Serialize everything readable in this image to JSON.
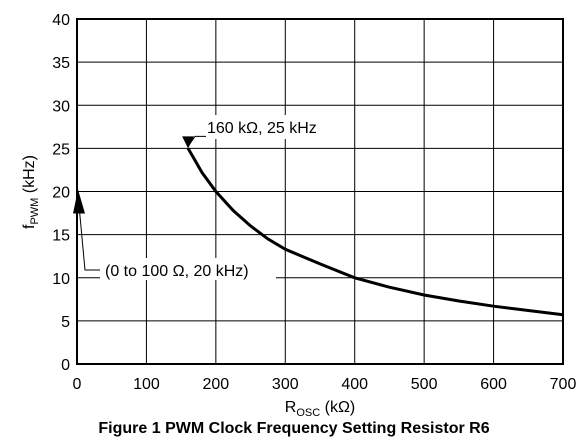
{
  "chart_data": {
    "type": "line",
    "xlabel_main": "R",
    "xlabel_sub": "OSC",
    "xlabel_unit": " (kΩ)",
    "ylabel_main": "f",
    "ylabel_sub": "PWM",
    "ylabel_unit": " (kHz)",
    "xlim": [
      0,
      700
    ],
    "ylim": [
      0,
      40
    ],
    "x_ticks": [
      0,
      100,
      200,
      300,
      400,
      500,
      600,
      700
    ],
    "y_ticks": [
      0,
      5,
      10,
      15,
      20,
      25,
      30,
      35,
      40
    ],
    "grid": true,
    "series": [
      {
        "x": [
          160,
          180,
          200,
          225,
          250,
          275,
          300,
          350,
          400,
          450,
          500,
          550,
          600,
          650,
          700
        ],
        "values": [
          25,
          22.2,
          20,
          17.8,
          16,
          14.5,
          13.3,
          11.6,
          10,
          8.9,
          8,
          7.3,
          6.7,
          6.2,
          5.7
        ]
      }
    ],
    "annotations": [
      {
        "text": "160 kΩ, 25 kHz",
        "x": 160,
        "y": 25
      },
      {
        "text": "(0 to 100 Ω, 20 kHz)",
        "x": 0,
        "y": 20
      }
    ]
  },
  "caption": "Figure 1 PWM Clock Frequency Setting Resistor R6"
}
